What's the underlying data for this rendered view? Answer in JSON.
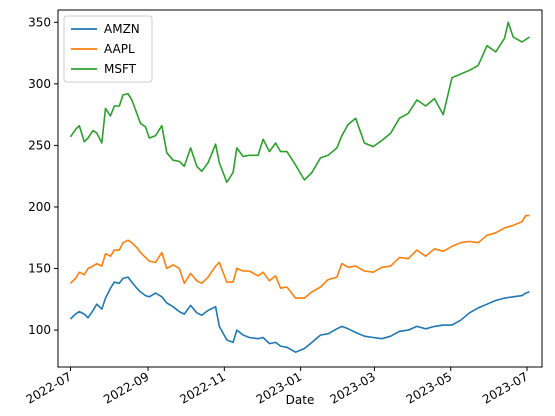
{
  "chart_data": {
    "type": "line",
    "title": "",
    "xlabel": "Date",
    "ylabel": "",
    "xlim": [
      "2022-06-21",
      "2023-07-13"
    ],
    "ylim": [
      70,
      360
    ],
    "x_ticks": [
      "2022-07-01",
      "2022-09-01",
      "2022-11-01",
      "2023-01-01",
      "2023-03-01",
      "2023-05-01",
      "2023-07-01"
    ],
    "x_tick_labels": [
      "2022-07",
      "2022-09",
      "2022-11",
      "2023-01",
      "2023-03",
      "2023-05",
      "2023-07"
    ],
    "y_ticks": [
      100,
      150,
      200,
      250,
      300,
      350
    ],
    "y_tick_labels": [
      "100",
      "150",
      "200",
      "250",
      "300",
      "350"
    ],
    "grid": false,
    "legend": {
      "placement": "top-left"
    },
    "series": [
      {
        "name": "AMZN",
        "color": "#1f77b4",
        "points": [
          [
            "2022-07-01",
            109
          ],
          [
            "2022-07-05",
            113
          ],
          [
            "2022-07-08",
            115
          ],
          [
            "2022-07-12",
            113
          ],
          [
            "2022-07-15",
            110
          ],
          [
            "2022-07-19",
            116
          ],
          [
            "2022-07-22",
            121
          ],
          [
            "2022-07-26",
            117
          ],
          [
            "2022-07-29",
            126
          ],
          [
            "2022-08-02",
            134
          ],
          [
            "2022-08-05",
            139
          ],
          [
            "2022-08-09",
            138
          ],
          [
            "2022-08-12",
            142
          ],
          [
            "2022-08-16",
            143
          ],
          [
            "2022-08-19",
            139
          ],
          [
            "2022-08-23",
            134
          ],
          [
            "2022-08-26",
            131
          ],
          [
            "2022-08-30",
            128
          ],
          [
            "2022-09-02",
            127
          ],
          [
            "2022-09-07",
            130
          ],
          [
            "2022-09-12",
            127
          ],
          [
            "2022-09-16",
            122
          ],
          [
            "2022-09-21",
            119
          ],
          [
            "2022-09-26",
            115
          ],
          [
            "2022-09-30",
            113
          ],
          [
            "2022-10-05",
            120
          ],
          [
            "2022-10-10",
            114
          ],
          [
            "2022-10-14",
            112
          ],
          [
            "2022-10-19",
            116
          ],
          [
            "2022-10-25",
            119
          ],
          [
            "2022-10-28",
            103
          ],
          [
            "2022-11-03",
            92
          ],
          [
            "2022-11-08",
            90
          ],
          [
            "2022-11-11",
            100
          ],
          [
            "2022-11-16",
            96
          ],
          [
            "2022-11-21",
            94
          ],
          [
            "2022-11-28",
            93
          ],
          [
            "2022-12-02",
            94
          ],
          [
            "2022-12-07",
            89
          ],
          [
            "2022-12-12",
            90
          ],
          [
            "2022-12-16",
            87
          ],
          [
            "2022-12-21",
            86
          ],
          [
            "2022-12-28",
            82
          ],
          [
            "2023-01-04",
            85
          ],
          [
            "2023-01-10",
            90
          ],
          [
            "2023-01-17",
            96
          ],
          [
            "2023-01-23",
            97
          ],
          [
            "2023-01-30",
            101
          ],
          [
            "2023-02-03",
            103
          ],
          [
            "2023-02-08",
            101
          ],
          [
            "2023-02-14",
            98
          ],
          [
            "2023-02-21",
            95
          ],
          [
            "2023-02-28",
            94
          ],
          [
            "2023-03-07",
            93
          ],
          [
            "2023-03-14",
            95
          ],
          [
            "2023-03-21",
            99
          ],
          [
            "2023-03-28",
            100
          ],
          [
            "2023-04-04",
            103
          ],
          [
            "2023-04-11",
            101
          ],
          [
            "2023-04-18",
            103
          ],
          [
            "2023-04-25",
            104
          ],
          [
            "2023-05-02",
            104
          ],
          [
            "2023-05-09",
            108
          ],
          [
            "2023-05-16",
            114
          ],
          [
            "2023-05-23",
            118
          ],
          [
            "2023-05-30",
            121
          ],
          [
            "2023-06-06",
            124
          ],
          [
            "2023-06-13",
            126
          ],
          [
            "2023-06-20",
            127
          ],
          [
            "2023-06-27",
            128
          ],
          [
            "2023-06-30",
            130
          ],
          [
            "2023-07-03",
            131
          ]
        ]
      },
      {
        "name": "AAPL",
        "color": "#ff7f0e",
        "points": [
          [
            "2022-07-01",
            138
          ],
          [
            "2022-07-05",
            142
          ],
          [
            "2022-07-08",
            147
          ],
          [
            "2022-07-12",
            145
          ],
          [
            "2022-07-15",
            150
          ],
          [
            "2022-07-19",
            152
          ],
          [
            "2022-07-22",
            154
          ],
          [
            "2022-07-26",
            152
          ],
          [
            "2022-07-29",
            162
          ],
          [
            "2022-08-02",
            160
          ],
          [
            "2022-08-05",
            165
          ],
          [
            "2022-08-09",
            165
          ],
          [
            "2022-08-12",
            171
          ],
          [
            "2022-08-16",
            173
          ],
          [
            "2022-08-19",
            171
          ],
          [
            "2022-08-23",
            167
          ],
          [
            "2022-08-26",
            163
          ],
          [
            "2022-08-30",
            159
          ],
          [
            "2022-09-02",
            156
          ],
          [
            "2022-09-07",
            155
          ],
          [
            "2022-09-12",
            163
          ],
          [
            "2022-09-16",
            150
          ],
          [
            "2022-09-21",
            153
          ],
          [
            "2022-09-26",
            150
          ],
          [
            "2022-09-30",
            138
          ],
          [
            "2022-10-05",
            146
          ],
          [
            "2022-10-10",
            140
          ],
          [
            "2022-10-14",
            138
          ],
          [
            "2022-10-19",
            143
          ],
          [
            "2022-10-25",
            152
          ],
          [
            "2022-10-28",
            155
          ],
          [
            "2022-11-03",
            139
          ],
          [
            "2022-11-08",
            139
          ],
          [
            "2022-11-11",
            150
          ],
          [
            "2022-11-16",
            148
          ],
          [
            "2022-11-21",
            148
          ],
          [
            "2022-11-28",
            144
          ],
          [
            "2022-12-02",
            147
          ],
          [
            "2022-12-07",
            140
          ],
          [
            "2022-12-12",
            144
          ],
          [
            "2022-12-16",
            134
          ],
          [
            "2022-12-21",
            135
          ],
          [
            "2022-12-28",
            126
          ],
          [
            "2023-01-04",
            126
          ],
          [
            "2023-01-10",
            131
          ],
          [
            "2023-01-17",
            135
          ],
          [
            "2023-01-23",
            141
          ],
          [
            "2023-01-30",
            143
          ],
          [
            "2023-02-03",
            154
          ],
          [
            "2023-02-08",
            151
          ],
          [
            "2023-02-14",
            152
          ],
          [
            "2023-02-21",
            148
          ],
          [
            "2023-02-28",
            147
          ],
          [
            "2023-03-07",
            151
          ],
          [
            "2023-03-14",
            152
          ],
          [
            "2023-03-21",
            159
          ],
          [
            "2023-03-28",
            158
          ],
          [
            "2023-04-04",
            165
          ],
          [
            "2023-04-11",
            160
          ],
          [
            "2023-04-18",
            166
          ],
          [
            "2023-04-25",
            164
          ],
          [
            "2023-05-02",
            168
          ],
          [
            "2023-05-09",
            171
          ],
          [
            "2023-05-16",
            172
          ],
          [
            "2023-05-23",
            171
          ],
          [
            "2023-05-30",
            177
          ],
          [
            "2023-06-06",
            179
          ],
          [
            "2023-06-13",
            183
          ],
          [
            "2023-06-20",
            185
          ],
          [
            "2023-06-27",
            188
          ],
          [
            "2023-06-30",
            193
          ],
          [
            "2023-07-03",
            193
          ]
        ]
      },
      {
        "name": "MSFT",
        "color": "#2ca02c",
        "points": [
          [
            "2022-07-01",
            257
          ],
          [
            "2022-07-05",
            263
          ],
          [
            "2022-07-08",
            266
          ],
          [
            "2022-07-12",
            253
          ],
          [
            "2022-07-15",
            256
          ],
          [
            "2022-07-19",
            262
          ],
          [
            "2022-07-22",
            260
          ],
          [
            "2022-07-26",
            252
          ],
          [
            "2022-07-29",
            280
          ],
          [
            "2022-08-02",
            274
          ],
          [
            "2022-08-05",
            282
          ],
          [
            "2022-08-09",
            282
          ],
          [
            "2022-08-12",
            291
          ],
          [
            "2022-08-16",
            292
          ],
          [
            "2022-08-19",
            287
          ],
          [
            "2022-08-23",
            276
          ],
          [
            "2022-08-26",
            268
          ],
          [
            "2022-08-30",
            265
          ],
          [
            "2022-09-02",
            256
          ],
          [
            "2022-09-07",
            258
          ],
          [
            "2022-09-12",
            266
          ],
          [
            "2022-09-16",
            244
          ],
          [
            "2022-09-21",
            238
          ],
          [
            "2022-09-26",
            237
          ],
          [
            "2022-09-30",
            233
          ],
          [
            "2022-10-05",
            248
          ],
          [
            "2022-10-10",
            233
          ],
          [
            "2022-10-14",
            229
          ],
          [
            "2022-10-19",
            236
          ],
          [
            "2022-10-25",
            251
          ],
          [
            "2022-10-28",
            236
          ],
          [
            "2022-11-03",
            220
          ],
          [
            "2022-11-08",
            228
          ],
          [
            "2022-11-11",
            248
          ],
          [
            "2022-11-16",
            241
          ],
          [
            "2022-11-21",
            242
          ],
          [
            "2022-11-28",
            242
          ],
          [
            "2022-12-02",
            255
          ],
          [
            "2022-12-07",
            245
          ],
          [
            "2022-12-12",
            252
          ],
          [
            "2022-12-16",
            245
          ],
          [
            "2022-12-21",
            245
          ],
          [
            "2022-12-28",
            234
          ],
          [
            "2023-01-04",
            222
          ],
          [
            "2023-01-10",
            228
          ],
          [
            "2023-01-17",
            240
          ],
          [
            "2023-01-23",
            242
          ],
          [
            "2023-01-30",
            248
          ],
          [
            "2023-02-03",
            258
          ],
          [
            "2023-02-08",
            267
          ],
          [
            "2023-02-14",
            272
          ],
          [
            "2023-02-21",
            252
          ],
          [
            "2023-02-28",
            249
          ],
          [
            "2023-03-07",
            254
          ],
          [
            "2023-03-14",
            260
          ],
          [
            "2023-03-21",
            272
          ],
          [
            "2023-03-28",
            276
          ],
          [
            "2023-04-04",
            287
          ],
          [
            "2023-04-11",
            282
          ],
          [
            "2023-04-18",
            288
          ],
          [
            "2023-04-25",
            275
          ],
          [
            "2023-05-02",
            305
          ],
          [
            "2023-05-09",
            308
          ],
          [
            "2023-05-16",
            311
          ],
          [
            "2023-05-23",
            315
          ],
          [
            "2023-05-30",
            331
          ],
          [
            "2023-06-06",
            326
          ],
          [
            "2023-06-13",
            337
          ],
          [
            "2023-06-16",
            350
          ],
          [
            "2023-06-20",
            338
          ],
          [
            "2023-06-27",
            334
          ],
          [
            "2023-07-03",
            338
          ]
        ]
      }
    ]
  }
}
